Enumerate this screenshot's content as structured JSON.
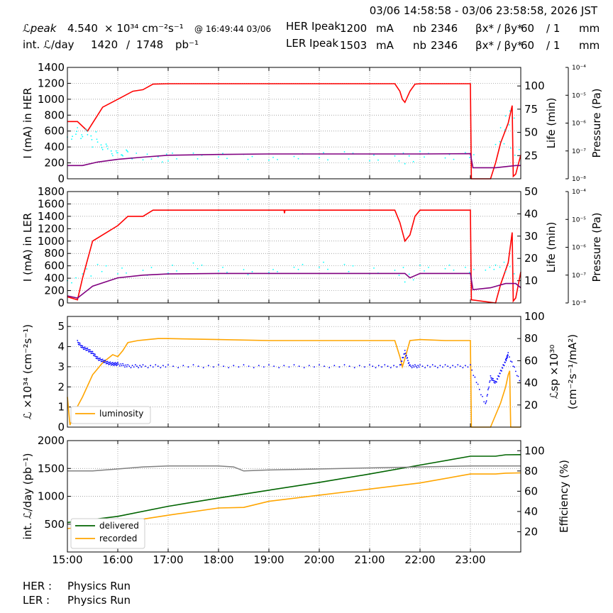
{
  "header": {
    "date_range": "03/06 14:58:58 - 03/06 23:58:58, 2026 JST",
    "lpeak_label": "ℒpeak",
    "lpeak_value": "4.540",
    "lpeak_unit": "× 10³⁴ cm⁻²s⁻¹",
    "lpeak_time": "@ 16:49:44 03/06",
    "intl_label": "int. ℒ/day",
    "intl_value1": "1420",
    "intl_sep": "/",
    "intl_value2": "1748",
    "intl_unit": "pb⁻¹",
    "her_label": "HER Ipeak",
    "her_value": "1200",
    "her_unit": "mA",
    "ler_label": "LER Ipeak",
    "ler_value": "1503",
    "ler_unit": "mA",
    "nb_label": "nb",
    "nb_her": "2346",
    "nb_ler": "2346",
    "beta_label": "βx* / βy*",
    "beta_her_x": "60",
    "beta_her_y": "/ 1",
    "beta_ler_x": "60",
    "beta_ler_y": "/ 1",
    "beta_unit": "mm"
  },
  "footer": {
    "her_label": "HER :",
    "her_status": "Physics Run",
    "ler_label": "LER :",
    "ler_status": "Physics Run"
  },
  "colors": {
    "current": "#ff0000",
    "life": "#00ffff",
    "pressure": "#800080",
    "luminosity": "#ffa500",
    "specific": "#0000ff",
    "delivered": "#006400",
    "recorded": "#ffa500",
    "efficiency": "#808080"
  },
  "chart_data": [
    {
      "type": "line",
      "ylabel": "I (mA) in HER",
      "y2label": "Life (min)",
      "y3label": "Pressure (Pa)",
      "xlim": [
        15.0,
        24.0
      ],
      "ylim": [
        0,
        1400
      ],
      "y2lim": [
        0,
        120
      ],
      "y3lim": [
        "10⁻⁸",
        "10⁻⁴"
      ],
      "yticks": [
        0,
        200,
        400,
        600,
        800,
        1000,
        1200,
        1400
      ],
      "y2ticks": [
        25,
        50,
        75,
        100
      ],
      "y3ticks": [
        "10⁻⁸",
        "10⁻⁷",
        "10⁻⁶",
        "10⁻⁵",
        "10⁻⁴"
      ],
      "series": [
        {
          "role": "current",
          "x": [
            15.0,
            15.2,
            15.4,
            15.6,
            15.7,
            16.0,
            16.3,
            16.5,
            16.7,
            17.0,
            18.0,
            19.0,
            20.0,
            21.0,
            21.5,
            21.6,
            21.65,
            21.7,
            21.8,
            21.9,
            22.0,
            22.5,
            23.0,
            23.02,
            23.4,
            23.5,
            23.6,
            23.75,
            23.83,
            23.85,
            23.9,
            24.0
          ],
          "y": [
            720,
            720,
            600,
            800,
            900,
            1000,
            1100,
            1120,
            1190,
            1195,
            1195,
            1195,
            1195,
            1195,
            1195,
            1100,
            1000,
            960,
            1100,
            1190,
            1195,
            1195,
            1195,
            0,
            0,
            200,
            450,
            700,
            920,
            30,
            60,
            300
          ]
        },
        {
          "role": "life",
          "x": [
            15.0,
            15.1,
            15.2,
            15.3,
            15.4,
            15.5,
            15.6,
            15.7,
            15.8,
            15.9,
            16.0,
            16.1,
            16.2,
            16.5,
            16.8,
            17.0,
            17.5,
            18.0,
            18.5,
            19.0,
            19.5,
            20.0,
            20.5,
            21.0,
            21.5,
            21.7,
            22.0,
            22.5,
            22.9,
            23.5,
            23.6,
            23.7,
            23.8
          ],
          "y": [
            45,
            48,
            52,
            50,
            46,
            38,
            35,
            33,
            30,
            28,
            28,
            27,
            26,
            25,
            22,
            23,
            23,
            25,
            24,
            23,
            24,
            25,
            26,
            24,
            23,
            20,
            25,
            24,
            26,
            40,
            55,
            70,
            30
          ]
        },
        {
          "role": "pressure",
          "x": [
            15.0,
            15.3,
            15.6,
            16.0,
            16.5,
            17.0,
            18.0,
            19.0,
            20.0,
            21.0,
            22.0,
            23.0,
            23.05,
            23.5,
            23.9,
            24.0
          ],
          "y": [
            3e-08,
            3e-08,
            4e-08,
            5e-08,
            6e-08,
            7e-08,
            7.5e-08,
            7.8e-08,
            7.8e-08,
            7.8e-08,
            7.8e-08,
            8e-08,
            2.5e-08,
            2.5e-08,
            3e-08,
            3e-08
          ]
        }
      ]
    },
    {
      "type": "line",
      "ylabel": "I (mA) in LER",
      "y2label": "Life (min)",
      "y3label": "Pressure (Pa)",
      "xlim": [
        15.0,
        24.0
      ],
      "ylim": [
        0,
        1800
      ],
      "y2lim": [
        0,
        50
      ],
      "y3lim": [
        "10⁻⁸",
        "10⁻⁴"
      ],
      "yticks": [
        0,
        200,
        400,
        600,
        800,
        1000,
        1200,
        1400,
        1600,
        1800
      ],
      "y2ticks": [
        10,
        20,
        30,
        40,
        50
      ],
      "y3ticks": [
        "10⁻⁸",
        "10⁻⁷",
        "10⁻⁶",
        "10⁻⁵",
        "10⁻⁴"
      ],
      "series": [
        {
          "role": "current",
          "x": [
            15.0,
            15.2,
            15.3,
            15.5,
            15.7,
            16.0,
            16.2,
            16.3,
            16.5,
            16.7,
            16.9,
            17.0,
            18.0,
            19.0,
            19.3,
            19.31,
            19.32,
            20.0,
            21.0,
            21.5,
            21.6,
            21.7,
            21.8,
            21.9,
            22.0,
            22.5,
            23.0,
            23.02,
            23.5,
            23.6,
            23.75,
            23.83,
            23.85,
            23.9,
            24.0
          ],
          "y": [
            100,
            50,
            400,
            1000,
            1100,
            1250,
            1400,
            1400,
            1400,
            1500,
            1500,
            1500,
            1500,
            1500,
            1500,
            1450,
            1500,
            1500,
            1500,
            1500,
            1300,
            1000,
            1100,
            1400,
            1500,
            1500,
            1500,
            50,
            0,
            300,
            650,
            1140,
            30,
            80,
            500
          ]
        },
        {
          "role": "life",
          "x": [
            15.0,
            15.3,
            15.6,
            16.0,
            16.5,
            17.0,
            17.5,
            18.0,
            18.5,
            19.0,
            19.5,
            20.0,
            20.5,
            21.0,
            21.5,
            21.7,
            22.0,
            22.5,
            22.9,
            23.3,
            23.5,
            23.7
          ],
          "y": [
            10,
            14,
            16,
            15,
            14,
            15,
            16,
            15,
            14,
            15,
            16,
            17,
            16,
            15,
            14,
            11,
            15,
            16,
            15,
            16,
            17,
            15
          ]
        },
        {
          "role": "pressure",
          "x": [
            15.0,
            15.2,
            15.5,
            16.0,
            16.5,
            17.0,
            18.0,
            19.0,
            20.0,
            21.0,
            21.7,
            21.8,
            22.0,
            23.0,
            23.05,
            23.4,
            23.7,
            23.9,
            24.0
          ],
          "y": [
            1.8e-08,
            1.5e-08,
            4e-08,
            8e-08,
            1e-07,
            1.1e-07,
            1.15e-07,
            1.15e-07,
            1.15e-07,
            1.15e-07,
            1.15e-07,
            8e-08,
            1.15e-07,
            1.15e-07,
            3e-08,
            3.5e-08,
            5e-08,
            5e-08,
            3.5e-08
          ]
        }
      ]
    },
    {
      "type": "line",
      "ylabel": "ℒ ×10³⁴ (cm⁻²s⁻¹)",
      "y2label": "ℒsp ×10³⁰ (cm⁻²s⁻¹/mA²)",
      "xlim": [
        15.0,
        24.0
      ],
      "ylim": [
        0,
        5.5
      ],
      "y2lim": [
        0,
        100
      ],
      "yticks": [
        0,
        1,
        2,
        3,
        4,
        5
      ],
      "y2ticks": [
        20,
        40,
        60,
        80,
        100
      ],
      "legend": "lower-left",
      "series": [
        {
          "name": "luminosity",
          "role": "luminosity",
          "x": [
            15.0,
            15.05,
            15.15,
            15.3,
            15.5,
            15.7,
            15.9,
            16.0,
            16.1,
            16.2,
            16.4,
            16.6,
            16.8,
            17.0,
            18.0,
            19.0,
            20.0,
            21.0,
            21.5,
            21.6,
            21.65,
            21.7,
            21.8,
            22.0,
            22.5,
            23.0,
            23.02,
            23.4,
            23.6,
            23.7,
            23.75,
            23.78,
            23.8,
            24.0
          ],
          "y": [
            1.5,
            0.1,
            0.8,
            1.5,
            2.6,
            3.2,
            3.6,
            3.5,
            3.8,
            4.2,
            4.3,
            4.35,
            4.4,
            4.4,
            4.35,
            4.3,
            4.3,
            4.3,
            4.3,
            3.5,
            3.0,
            3.4,
            4.3,
            4.35,
            4.3,
            4.3,
            0,
            0,
            1.2,
            2.0,
            2.6,
            2.8,
            0,
            0
          ]
        },
        {
          "role": "specific",
          "x": [
            15.2,
            15.3,
            15.4,
            15.5,
            15.6,
            15.7,
            15.8,
            15.9,
            16.0,
            16.2,
            16.5,
            17.0,
            18.0,
            19.0,
            20.0,
            21.0,
            21.6,
            21.7,
            21.8,
            22.0,
            22.5,
            23.0,
            23.3,
            23.4,
            23.5,
            23.6,
            23.7,
            23.75,
            24.0
          ],
          "y": [
            77,
            72,
            70,
            67,
            62,
            60,
            58,
            57,
            57,
            55,
            55,
            55,
            55,
            55,
            55,
            55,
            55,
            68,
            55,
            55,
            55,
            55,
            20,
            45,
            40,
            50,
            60,
            66,
            40
          ]
        }
      ]
    },
    {
      "type": "line",
      "ylabel": "int. ℒ/day (pb⁻¹)",
      "y2label": "Efficiency (%)",
      "xlim": [
        15.0,
        24.0
      ],
      "ylim": [
        0,
        2000
      ],
      "y2lim": [
        0,
        110
      ],
      "yticks": [
        500,
        1000,
        1500,
        2000
      ],
      "y2ticks": [
        20,
        40,
        60,
        80,
        100
      ],
      "xticks": [
        "15:00",
        "16:00",
        "17:00",
        "18:00",
        "19:00",
        "20:00",
        "21:00",
        "22:00",
        "23:00"
      ],
      "legend": "lower-left",
      "series": [
        {
          "name": "delivered",
          "role": "delivered",
          "x": [
            15.0,
            16.0,
            17.0,
            18.0,
            19.0,
            20.0,
            21.0,
            22.0,
            23.0,
            23.5,
            23.7,
            24.0
          ],
          "y": [
            530,
            640,
            820,
            970,
            1110,
            1250,
            1400,
            1560,
            1720,
            1720,
            1745,
            1748
          ]
        },
        {
          "name": "recorded",
          "role": "recorded",
          "x": [
            15.0,
            16.0,
            17.0,
            18.0,
            18.5,
            19.0,
            20.0,
            21.0,
            22.0,
            23.0,
            23.5,
            23.7,
            24.0
          ],
          "y": [
            420,
            520,
            660,
            790,
            800,
            910,
            1020,
            1130,
            1240,
            1400,
            1400,
            1415,
            1420
          ]
        },
        {
          "role": "efficiency",
          "x": [
            15.0,
            15.5,
            16.0,
            16.5,
            17.0,
            17.5,
            18.0,
            18.3,
            18.5,
            19.0,
            20.0,
            21.0,
            22.0,
            23.0,
            23.5,
            24.0
          ],
          "y": [
            80,
            80,
            82,
            84,
            85,
            85,
            85,
            84,
            80,
            81,
            82,
            83,
            84,
            85,
            85,
            85
          ]
        }
      ]
    }
  ]
}
